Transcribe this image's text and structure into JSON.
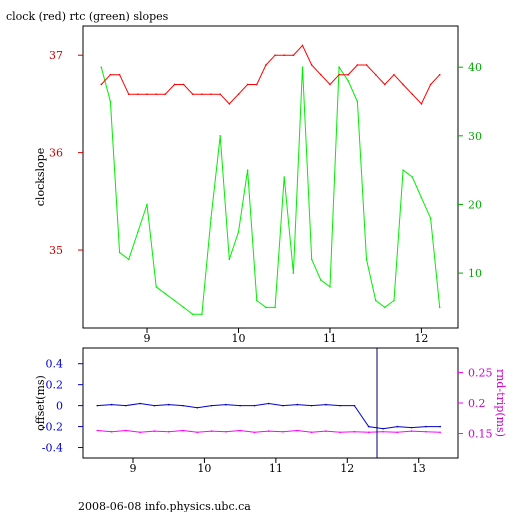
{
  "chart_data": [
    {
      "type": "line",
      "title": "clock (red) rtc (green) slopes",
      "ylabel": "clockslope",
      "x": [
        8.5,
        8.6,
        8.7,
        8.8,
        8.9,
        9.0,
        9.1,
        9.2,
        9.3,
        9.4,
        9.5,
        9.6,
        9.7,
        9.8,
        9.9,
        10.0,
        10.1,
        10.2,
        10.3,
        10.4,
        10.5,
        10.6,
        10.7,
        10.8,
        10.9,
        11.0,
        11.1,
        11.2,
        11.3,
        11.4,
        11.5,
        11.6,
        11.7,
        11.8,
        11.9,
        12.0,
        12.1,
        12.2
      ],
      "xticks": [
        "9",
        "10",
        "11",
        "12"
      ],
      "xlim": [
        8.3,
        12.4
      ],
      "series": [
        {
          "name": "clock",
          "color": "#ff0000",
          "axis": "left",
          "ylim": [
            34.2,
            37.3
          ],
          "yticks": [
            "35",
            "36",
            "37"
          ],
          "values": [
            36.7,
            36.8,
            36.8,
            36.6,
            36.6,
            36.6,
            36.6,
            36.6,
            36.7,
            36.7,
            36.6,
            36.6,
            36.6,
            36.6,
            36.5,
            36.6,
            36.7,
            36.7,
            36.9,
            37.0,
            37.0,
            37.0,
            37.1,
            36.9,
            36.8,
            36.7,
            36.8,
            36.8,
            36.9,
            36.9,
            36.8,
            36.7,
            36.8,
            36.7,
            36.6,
            36.5,
            36.7,
            36.8
          ]
        },
        {
          "name": "rtc",
          "color": "#00ee00",
          "axis": "right",
          "ylim": [
            2,
            46
          ],
          "yticks": [
            "10",
            "20",
            "30",
            "40"
          ],
          "values": [
            40,
            35,
            13,
            12,
            16,
            20,
            8,
            7,
            6,
            5,
            4,
            4,
            18,
            30,
            12,
            16,
            25,
            6,
            5,
            5,
            24,
            10,
            40,
            12,
            9,
            8,
            40,
            38,
            35,
            12,
            6,
            5,
            6,
            25,
            24,
            21,
            18,
            5
          ]
        }
      ]
    },
    {
      "type": "line",
      "ylabel_left": "offset(ms)",
      "ylabel_right": "rnd-trip(ms)",
      "x": [
        8.5,
        8.7,
        8.9,
        9.1,
        9.3,
        9.5,
        9.7,
        9.9,
        10.1,
        10.3,
        10.5,
        10.7,
        10.9,
        11.1,
        11.3,
        11.5,
        11.7,
        11.9,
        12.1,
        12.3,
        12.5,
        12.7,
        12.9,
        13.1,
        13.3
      ],
      "xticks": [
        "9",
        "10",
        "11",
        "12",
        "13"
      ],
      "xlim": [
        8.3,
        13.55
      ],
      "series": [
        {
          "name": "offset",
          "color": "#0000cc",
          "axis": "left",
          "ylim": [
            -0.5,
            0.55
          ],
          "yticks": [
            "0.4",
            "0.2",
            "0",
            "-0.2",
            "-0.4"
          ],
          "values": [
            0.0,
            0.01,
            0.0,
            0.02,
            0.0,
            0.01,
            0.0,
            -0.02,
            0.0,
            0.01,
            0.0,
            0.0,
            0.02,
            0.0,
            0.01,
            0.0,
            0.01,
            0.0,
            0.0,
            -0.2,
            -0.22,
            -0.2,
            -0.21,
            -0.2,
            -0.2
          ]
        },
        {
          "name": "rnd-trip",
          "color": "#ff00ff",
          "axis": "right",
          "ylim": [
            0.11,
            0.29
          ],
          "yticks": [
            "0.25",
            "0.2",
            "0.15"
          ],
          "values": [
            0.155,
            0.153,
            0.155,
            0.152,
            0.154,
            0.153,
            0.155,
            0.152,
            0.154,
            0.153,
            0.155,
            0.152,
            0.154,
            0.153,
            0.155,
            0.152,
            0.154,
            0.152,
            0.153,
            0.152,
            0.153,
            0.152,
            0.154,
            0.153,
            0.152
          ]
        }
      ]
    }
  ],
  "footer": "2008-06-08 info.physics.ubc.ca"
}
